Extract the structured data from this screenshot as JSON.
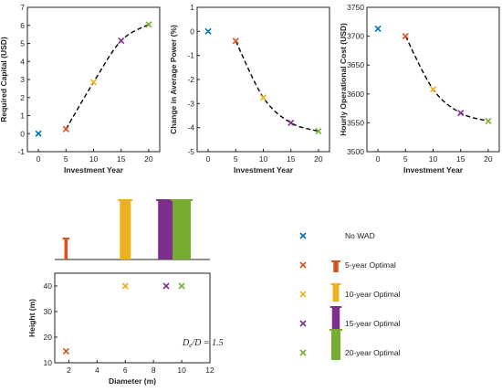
{
  "legend": {
    "entries": [
      "No WAD",
      "5-year Optimal",
      "10-year Optimal",
      "15-year Optimal",
      "20-year Optimal"
    ],
    "colors": [
      "#0072BD",
      "#D95319",
      "#EDB120",
      "#7E2F8E",
      "#77AC30"
    ]
  },
  "annotation": "D_e/D = 1.5",
  "chart_data": [
    {
      "type": "scatter",
      "xlabel": "Investment Year",
      "ylabel": "Required Capital (USD)",
      "xlim": [
        -2,
        22
      ],
      "ylim": [
        -1,
        7
      ],
      "xticks": [
        "0",
        "5",
        "10",
        "15",
        "20"
      ],
      "yticks": [
        "-1",
        "0",
        "1",
        "2",
        "3",
        "4",
        "5",
        "6",
        "7"
      ],
      "x": [
        0,
        5,
        10,
        15,
        20
      ],
      "y": [
        0.0,
        0.25,
        2.85,
        5.15,
        6.05
      ],
      "trend": "dashed fit through 5–20"
    },
    {
      "type": "scatter",
      "xlabel": "Investment Year",
      "ylabel": "Change in Average Power (%)",
      "xlim": [
        -2,
        22
      ],
      "ylim": [
        -5,
        1
      ],
      "xticks": [
        "0",
        "5",
        "10",
        "15",
        "20"
      ],
      "yticks": [
        "-5",
        "-4",
        "-3",
        "-2",
        "-1",
        "0",
        "1"
      ],
      "x": [
        0,
        5,
        10,
        15,
        20
      ],
      "y": [
        0.0,
        -0.4,
        -2.75,
        -3.8,
        -4.15
      ],
      "trend": "dashed fit through 5–20"
    },
    {
      "type": "scatter",
      "xlabel": "Investment Year",
      "ylabel": "Hourly Operational Cost (USD)",
      "xlim": [
        -2,
        22
      ],
      "ylim": [
        3500,
        3750
      ],
      "xticks": [
        "0",
        "5",
        "10",
        "15",
        "20"
      ],
      "yticks": [
        "3500",
        "3550",
        "3600",
        "3650",
        "3700",
        "3750"
      ],
      "x": [
        0,
        5,
        10,
        15,
        20
      ],
      "y": [
        3713,
        3700,
        3608,
        3567,
        3553
      ],
      "trend": "dashed fit through 5–20"
    },
    {
      "type": "scatter",
      "xlabel": "Diameter (m)",
      "ylabel": "Height (m)",
      "xlim": [
        1,
        12
      ],
      "ylim": [
        10,
        45
      ],
      "xticks": [
        "2",
        "4",
        "6",
        "8",
        "10",
        "12"
      ],
      "yticks": [
        "10",
        "20",
        "30",
        "40"
      ],
      "x": [
        1.8,
        6.0,
        8.9,
        10.0
      ],
      "y": [
        14.5,
        40,
        40,
        40
      ],
      "point_labels": [
        "5-year Optimal",
        "10-year Optimal",
        "15-year Optimal",
        "20-year Optimal"
      ]
    }
  ]
}
